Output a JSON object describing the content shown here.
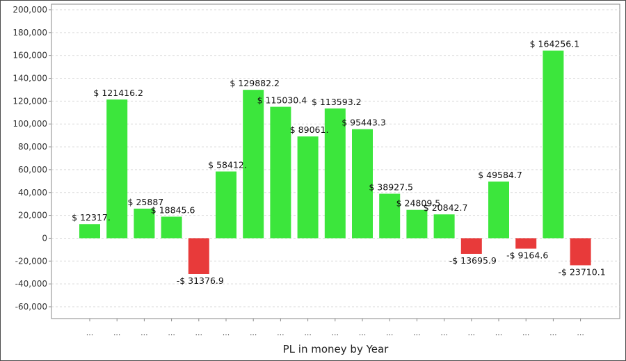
{
  "chart_data": {
    "type": "bar",
    "xlabel": "PL in money by Year",
    "ylabel": "",
    "ylim": [
      -60000,
      200000
    ],
    "yticks": [
      -60000,
      -40000,
      -20000,
      0,
      20000,
      40000,
      60000,
      80000,
      100000,
      120000,
      140000,
      160000,
      180000,
      200000
    ],
    "ytick_labels": [
      "-60,000",
      "-40,000",
      "-20,000",
      "0",
      "20,000",
      "40,000",
      "60,000",
      "80,000",
      "100,000",
      "120,000",
      "140,000",
      "160,000",
      "180,000",
      "200,000"
    ],
    "grid": true,
    "positive_color": "#3ce63c",
    "negative_color": "#e83a3a",
    "categories": [
      "...",
      "...",
      "...",
      "...",
      "...",
      "...",
      "...",
      "...",
      "...",
      "...",
      "...",
      "...",
      "...",
      "...",
      "...",
      "...",
      "...",
      "...",
      "..."
    ],
    "values": [
      12317,
      121416.2,
      25887,
      18845.6,
      -31376.9,
      58412,
      129882.2,
      115030.4,
      89061,
      113593.2,
      95443.3,
      38927.5,
      24809.5,
      20842.7,
      -13695.9,
      49584.7,
      -9164.6,
      164256.1,
      -23710.1
    ],
    "data_labels": [
      "$ 12317.",
      "$ 121416.2",
      "$ 25887",
      "$ 18845.6",
      "-$ 31376.9",
      "$ 58412.",
      "$ 129882.2",
      "$ 115030.4",
      "$ 89061.",
      "$ 113593.2",
      "$ 95443.3",
      "$ 38927.5",
      "$ 24809.5",
      "$ 20842.7",
      "-$ 13695.9",
      "$ 49584.7",
      "-$ 9164.6",
      "$ 164256.1",
      "-$ 23710.1"
    ]
  }
}
